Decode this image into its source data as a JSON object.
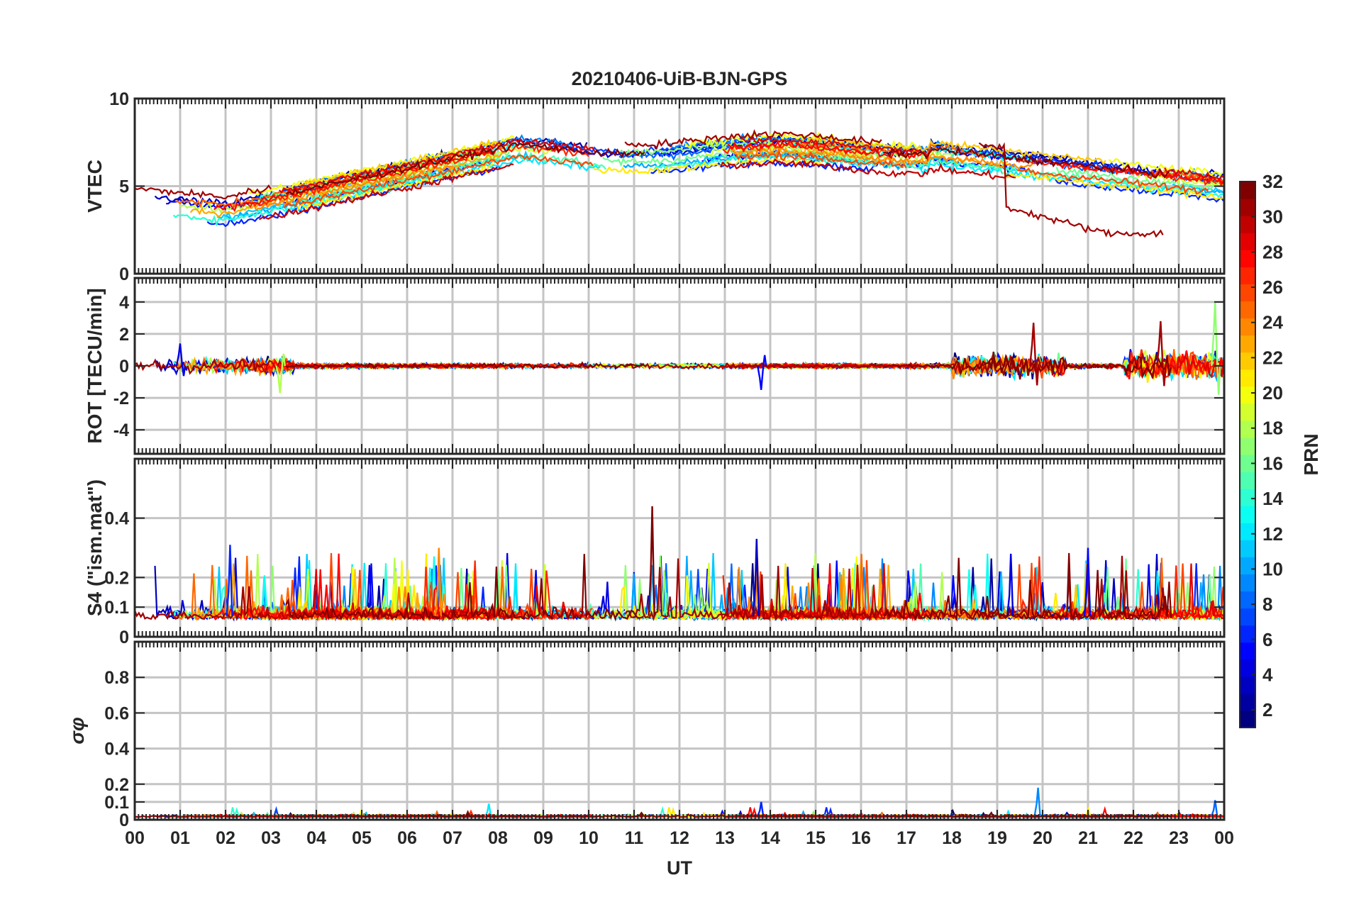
{
  "chart_data": {
    "type": "line",
    "title": "20210406-UiB-BJN-GPS",
    "xlabel": "UT",
    "x_range": [
      0,
      24
    ],
    "x_tick_labels": [
      "00",
      "01",
      "02",
      "03",
      "04",
      "05",
      "06",
      "07",
      "08",
      "09",
      "10",
      "11",
      "12",
      "13",
      "14",
      "15",
      "16",
      "17",
      "18",
      "19",
      "20",
      "21",
      "22",
      "23",
      "00"
    ],
    "series_count": 32,
    "colorbar": {
      "label": "PRN",
      "range": [
        1,
        32
      ],
      "ticks": [
        "2",
        "4",
        "6",
        "8",
        "10",
        "12",
        "14",
        "16",
        "18",
        "20",
        "22",
        "24",
        "26",
        "28",
        "30",
        "32"
      ],
      "colormap": "jet"
    },
    "panels": [
      {
        "id": "vtec",
        "ylabel": "VTEC",
        "ylim": [
          0,
          10
        ],
        "yticks": [
          0,
          5,
          10
        ],
        "ytick_labels": [
          "0",
          "5",
          "10"
        ],
        "gridlines": [
          5
        ],
        "description": "Vertical TEC per GPS satellite, about 3-5 near 00 UT, rising to 6-8 between 07 and 18 UT, decreasing to about 4-6 near 24 UT; PRN 31 dips to about 2 near 21-22 UT."
      },
      {
        "id": "rot",
        "ylabel": "ROT [TECU/min]",
        "ylim": [
          -5.5,
          5.5
        ],
        "yticks": [
          -4,
          -2,
          0,
          2,
          4
        ],
        "ytick_labels": [
          "-4",
          "-2",
          "0",
          "2",
          "4"
        ],
        "gridlines": [
          -4,
          -2,
          0,
          2,
          4
        ],
        "description": "Rate of TEC, near 0 with bursts up to about +2.8 near 19.8 UT and 22.6 UT, and about +4 near 23.8 UT."
      },
      {
        "id": "s4",
        "ylabel": "S4 (\"ism.mat\")",
        "ylim": [
          0,
          0.6
        ],
        "yticks": [
          0,
          0.1,
          0.2,
          0.4
        ],
        "ytick_labels": [
          "0",
          "0.1",
          "0.2",
          "0.4"
        ],
        "gridlines": [
          0.1,
          0.2,
          0.4
        ],
        "description": "Amplitude scintillation index, background about 0.05-0.1, spikes to about 0.3, maximum about 0.44 near 11.4 UT."
      },
      {
        "id": "sigma_phi",
        "ylabel": "σφ",
        "ylim": [
          0,
          1
        ],
        "yticks": [
          0,
          0.1,
          0.2,
          0.4,
          0.6,
          0.8
        ],
        "ytick_labels": [
          "0",
          "0.1",
          "0.2",
          "0.4",
          "0.6",
          "0.8"
        ],
        "gridlines": [
          0.1,
          0.2,
          0.4,
          0.6,
          0.8
        ],
        "description": "Phase scintillation index, mostly below 0.05, peaks about 0.18 near 19.9 UT and about 0.1 near 13.8 UT."
      }
    ]
  }
}
